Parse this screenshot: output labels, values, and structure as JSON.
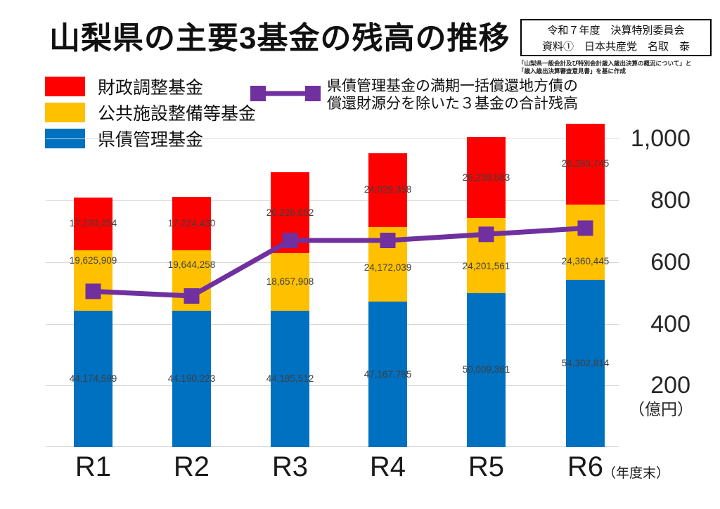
{
  "title": "山梨県の主要3基金の残高の推移",
  "header_box": {
    "line1": "令和７年度　決算特別委員会",
    "line2": "資料①　日本共産党　名取　泰"
  },
  "source_note": {
    "line1": "「山梨県一般会計及び特別会計歳入歳出決算の概況について」と",
    "line2": "「歳入歳出決算審査意見書」を基に作成"
  },
  "legend": {
    "items": [
      {
        "label": "財政調整基金",
        "color": "#ff0000"
      },
      {
        "label": "公共施設整備等基金",
        "color": "#ffc000"
      },
      {
        "label": "県債管理基金",
        "color": "#0070c0"
      }
    ],
    "line_item": {
      "label_line1": "県債管理基金の満期一括償還地方債の",
      "label_line2": "償還財源分を除いた３基金の合計残高",
      "color": "#7030a0"
    }
  },
  "axes": {
    "y_ticks": [
      "1,000",
      "800",
      "600",
      "400",
      "200"
    ],
    "y_tick_values": [
      1000,
      800,
      600,
      400,
      200
    ],
    "y_unit": "（億円）",
    "x_labels": [
      "R1",
      "R2",
      "R3",
      "R4",
      "R5",
      "R6"
    ],
    "x_suffix": "（年度末）"
  },
  "chart_data": {
    "type": "bar",
    "subtype": "stacked-bar-with-line-overlay",
    "title": "山梨県の主要3基金の残高の推移",
    "categories": [
      "R1",
      "R2",
      "R3",
      "R4",
      "R5",
      "R6"
    ],
    "bar_value_unit": "thousand yen (千円); axis shown in 億円 (1億円 = 100,000千円)",
    "series": [
      {
        "name": "県債管理基金",
        "color": "#0070c0",
        "values": [
          44174599,
          44190223,
          44185512,
          47167785,
          50009361,
          54302814
        ]
      },
      {
        "name": "公共施設整備等基金",
        "color": "#ffc000",
        "values": [
          19625909,
          19644258,
          18657908,
          24172039,
          24201561,
          24360445
        ]
      },
      {
        "name": "財政調整基金",
        "color": "#ff0000",
        "values": [
          17220254,
          17224430,
          26226652,
          24029358,
          26239583,
          26285745
        ]
      }
    ],
    "line_series": {
      "name": "県債管理基金の満期一括償還地方債の償還財源分を除いた３基金の合計残高",
      "color": "#7030a0",
      "values_oku_en_estimated": [
        505,
        490,
        670,
        670,
        690,
        710
      ]
    },
    "ylabel": "（億円）",
    "ylim": [
      0,
      1100
    ],
    "grid": true,
    "legend_position": "top-left"
  }
}
